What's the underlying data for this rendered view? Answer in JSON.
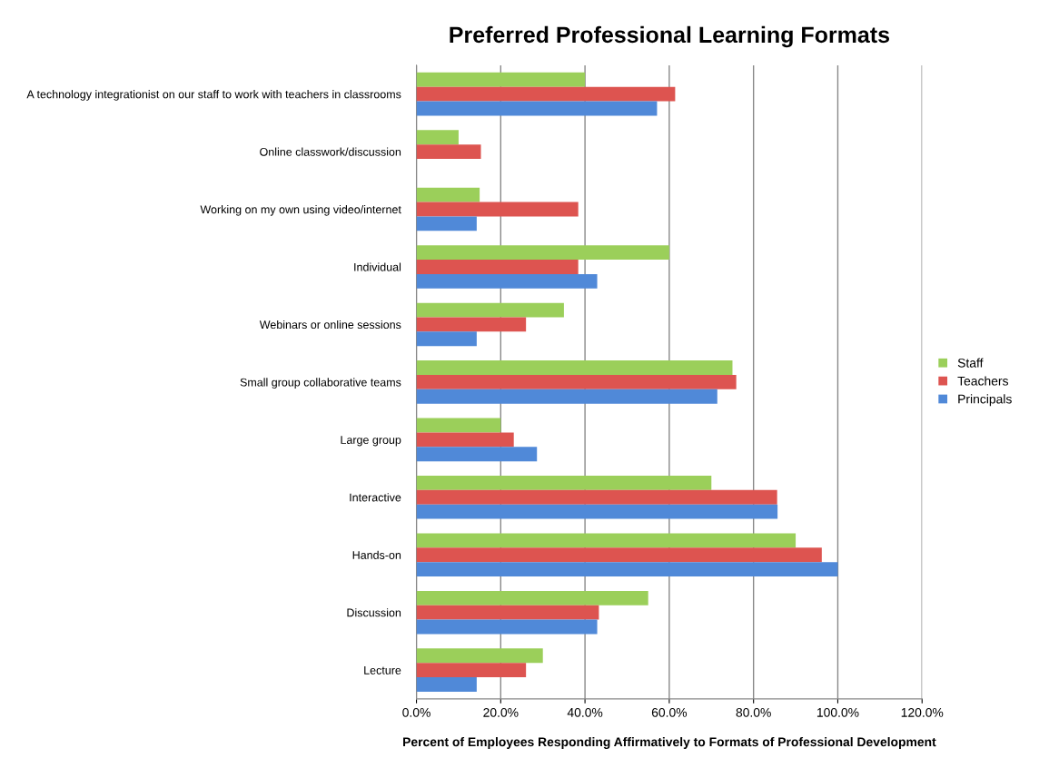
{
  "chart_data": {
    "type": "bar",
    "orientation": "horizontal",
    "title": "Preferred Professional Learning Formats",
    "xlabel": "Percent of Employees Responding Affirmatively to Formats of Professional Development",
    "categories": [
      "A technology integrationist on our staff to work with teachers in classrooms",
      "Online classwork/discussion",
      "Working on my own using video/internet",
      "Individual",
      "Webinars or online sessions",
      "Small group collaborative teams",
      "Large group",
      "Interactive",
      "Hands-on",
      "Discussion",
      "Lecture"
    ],
    "series": [
      {
        "name": "Staff",
        "color": "#9bcf5a",
        "values": [
          40,
          10,
          15,
          60,
          35,
          75,
          20,
          70,
          90,
          55,
          30
        ]
      },
      {
        "name": "Teachers",
        "color": "#dd5450",
        "values": [
          61.4,
          15.3,
          38.4,
          38.4,
          26,
          75.9,
          23.1,
          85.6,
          96.2,
          43.3,
          26
        ]
      },
      {
        "name": "Principals",
        "color": "#5089d8",
        "values": [
          57.1,
          0,
          14.3,
          42.9,
          14.3,
          71.4,
          28.6,
          85.7,
          100,
          42.9,
          14.3
        ]
      }
    ],
    "xlim": [
      0,
      120
    ],
    "xticks": [
      {
        "value": 0,
        "label": "0.0%"
      },
      {
        "value": 20,
        "label": "20.0%"
      },
      {
        "value": 40,
        "label": "40.0%"
      },
      {
        "value": 60,
        "label": "60.0%"
      },
      {
        "value": 80,
        "label": "80.0%"
      },
      {
        "value": 100,
        "label": "100.0%"
      },
      {
        "value": 120,
        "label": "120.0%"
      }
    ],
    "grid": "x",
    "legend": "right"
  }
}
